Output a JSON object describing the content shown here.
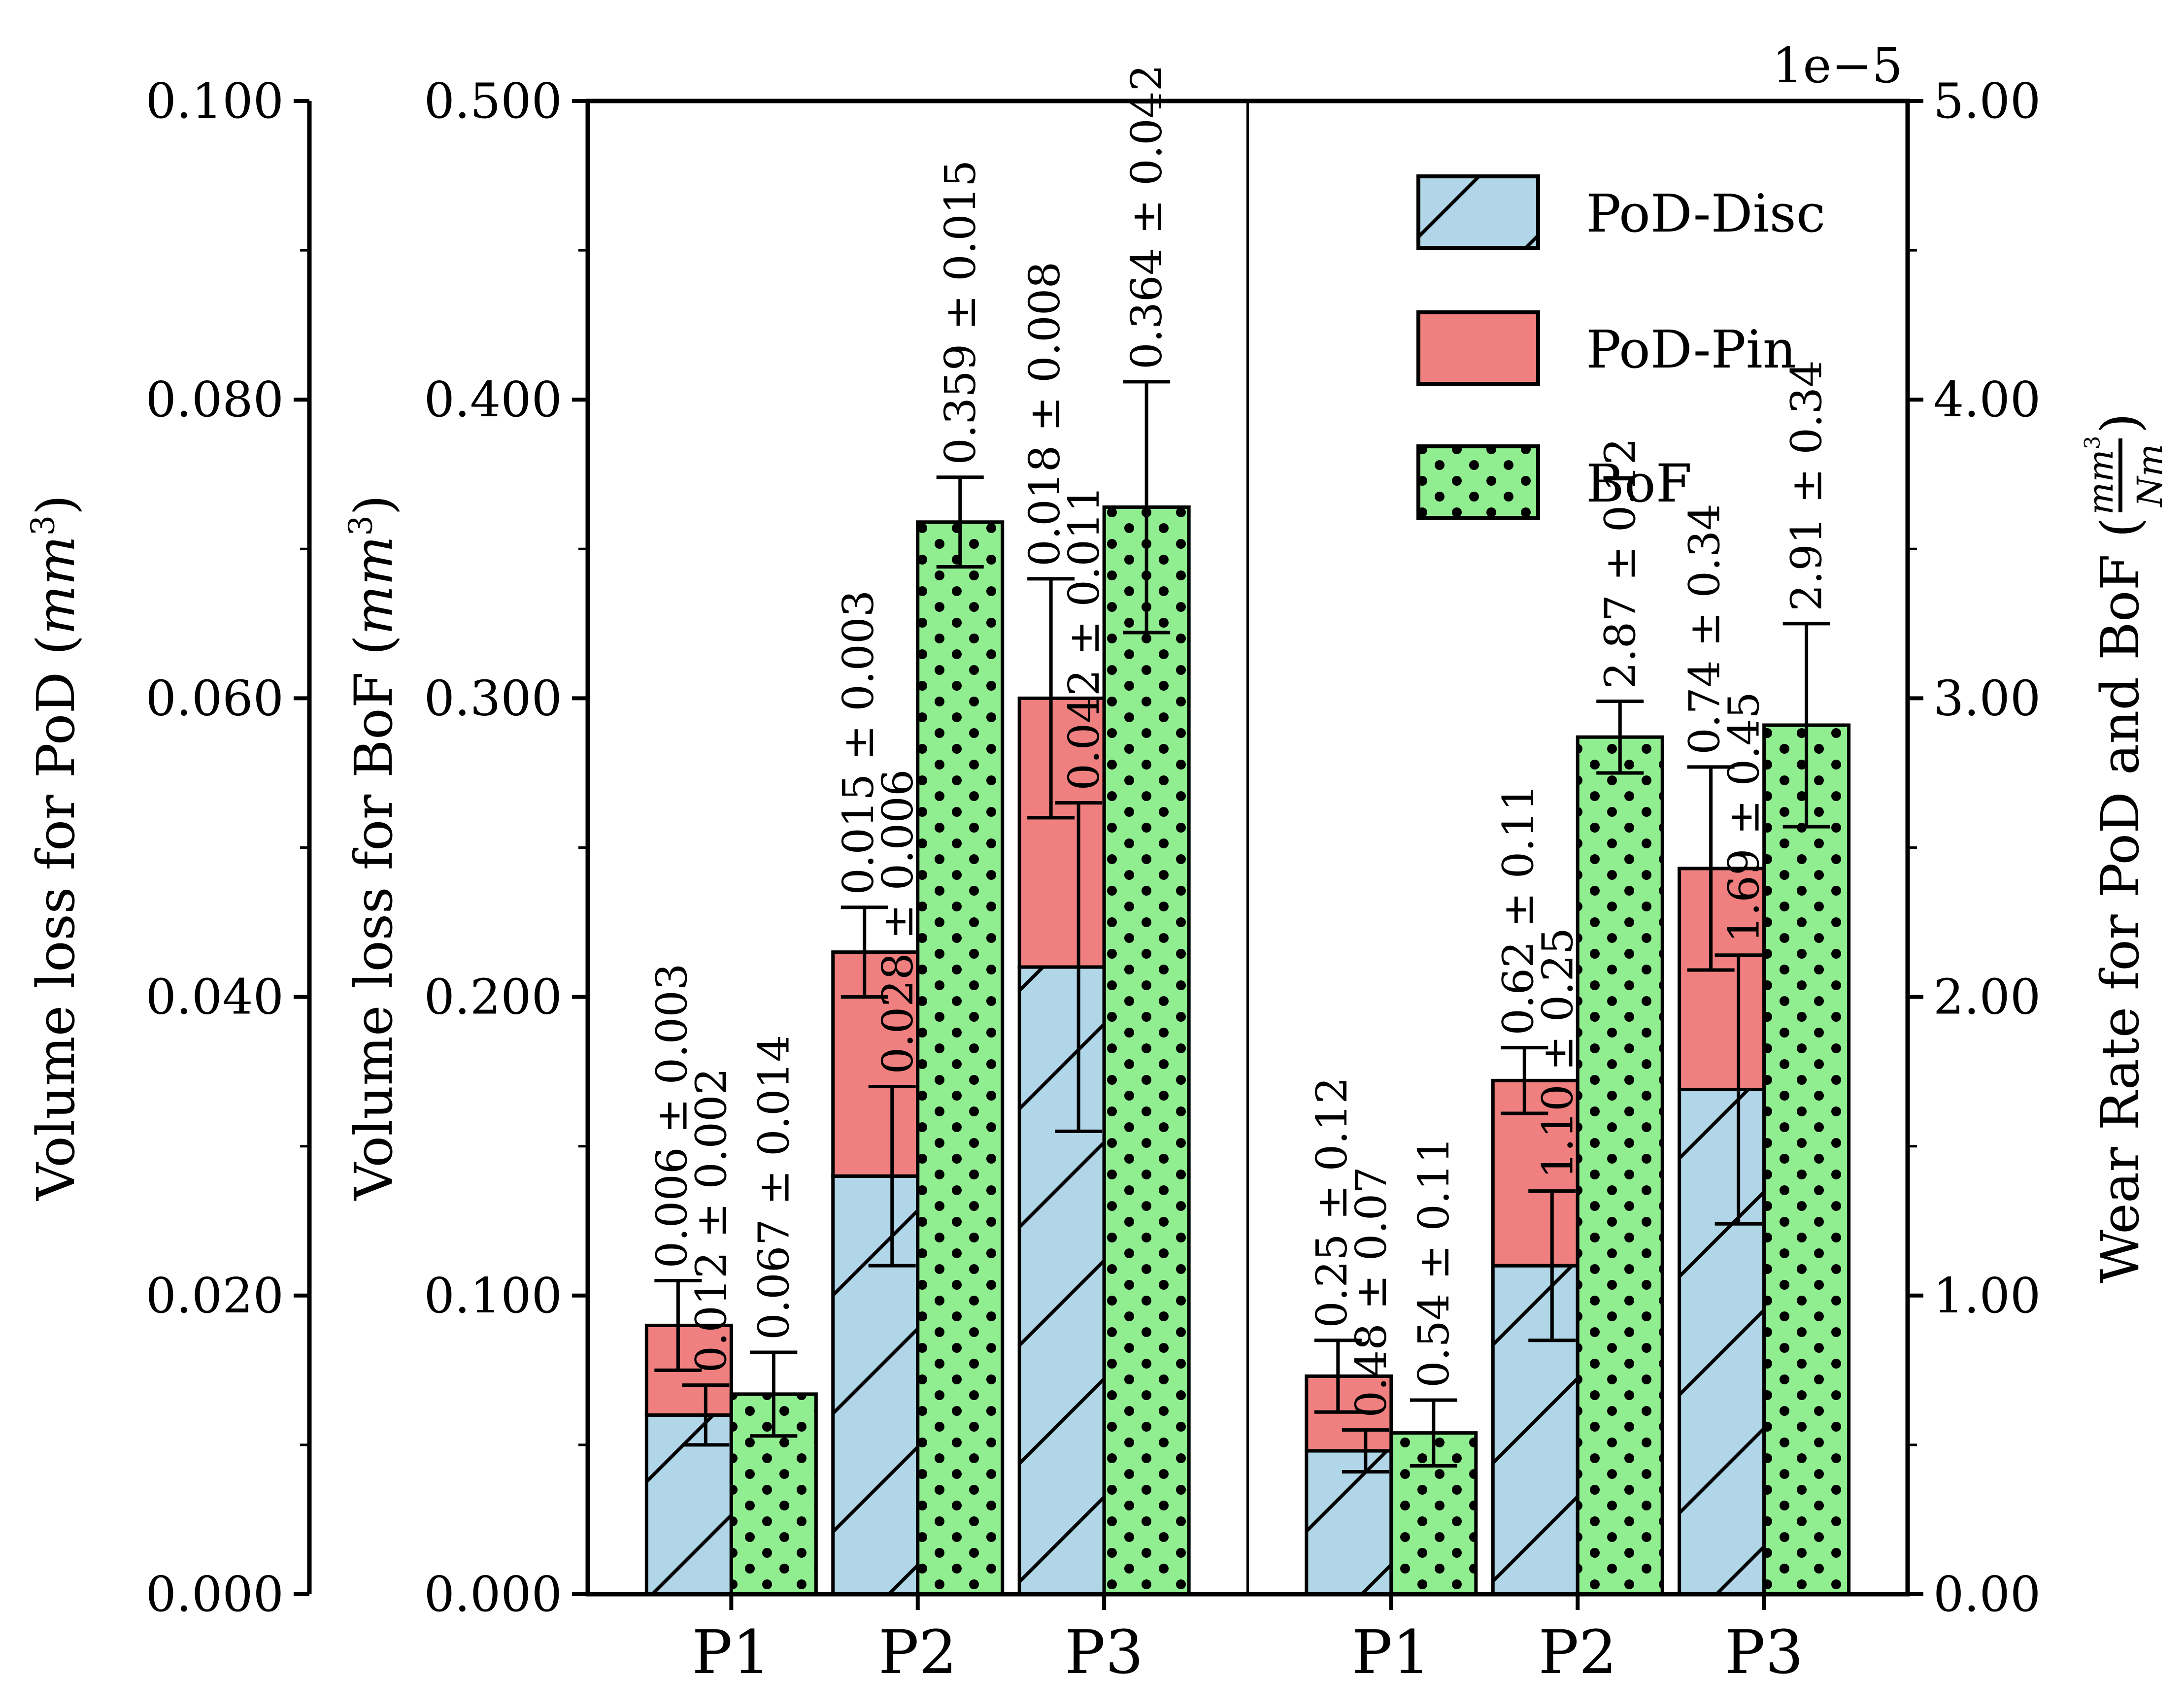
{
  "chart_data": {
    "type": "bar",
    "title": "",
    "offset_label": "1e−5",
    "background": "#ffffff",
    "colors": {
      "pod_disc": "#b0d6e8",
      "pod_pin": "#f08080",
      "bof": "#90ee90",
      "edge": "#000000"
    },
    "legend": {
      "position": "upper-center-right inside plot",
      "entries": [
        {
          "label": "PoD-Disc",
          "fill": "pod_disc",
          "hatch": "diagonal"
        },
        {
          "label": "PoD-Pin",
          "fill": "pod_pin",
          "hatch": "none"
        },
        {
          "label": "BoF",
          "fill": "bof",
          "hatch": "dots"
        }
      ]
    },
    "axes": {
      "pod": {
        "label": "Volume loss for PoD (mm³)",
        "label_parts": [
          {
            "t": "Volume loss for PoD ("
          },
          {
            "t": "mm",
            "italic": true
          },
          {
            "t": "3",
            "sup": true
          },
          {
            "t": ")"
          }
        ],
        "range": [
          0,
          0.1
        ],
        "tick_values": [
          0,
          0.02,
          0.04,
          0.06,
          0.08,
          0.1
        ],
        "tick_labels": [
          "0.000",
          "0.020",
          "0.040",
          "0.060",
          "0.080",
          "0.100"
        ]
      },
      "bof": {
        "label": "Volume loss for BoF (mm³)",
        "label_parts": [
          {
            "t": "Volume loss for BoF ("
          },
          {
            "t": "mm",
            "italic": true
          },
          {
            "t": "3",
            "sup": true
          },
          {
            "t": ")"
          }
        ],
        "range": [
          0,
          0.5
        ],
        "tick_values": [
          0,
          0.1,
          0.2,
          0.3,
          0.4,
          0.5
        ],
        "tick_labels": [
          "0.000",
          "0.100",
          "0.200",
          "0.300",
          "0.400",
          "0.500"
        ]
      },
      "wear": {
        "label": "Wear Rate for PoD and BoF (mm³/Nm)",
        "label_prefix": "Wear Rate for PoD and BoF (",
        "frac_num_parts": [
          {
            "t": "mm",
            "italic": true
          },
          {
            "t": "3",
            "sup": true
          }
        ],
        "frac_den_parts": [
          {
            "t": "Nm",
            "italic": true
          }
        ],
        "label_suffix": ")",
        "range": [
          0,
          5
        ],
        "tick_values": [
          0,
          1,
          2,
          3,
          4,
          5
        ],
        "tick_labels": [
          "0.00",
          "1.00",
          "2.00",
          "3.00",
          "4.00",
          "5.00"
        ]
      }
    },
    "panels": [
      {
        "id": "volume-loss",
        "categories": [
          "P1",
          "P2",
          "P3"
        ],
        "series": [
          {
            "name": "PoD-Disc",
            "role": "disc",
            "axis": "pod",
            "values": [
              0.012,
              0.028,
              0.042
            ],
            "errors": [
              0.002,
              0.006,
              0.011
            ],
            "labels": [
              "0.012 ± 0.002",
              "0.028 ± 0.006",
              "0.042 ± 0.011"
            ]
          },
          {
            "name": "PoD-Pin",
            "role": "pin",
            "axis": "pod",
            "stacked_on": "PoD-Disc",
            "values": [
              0.006,
              0.015,
              0.018
            ],
            "errors": [
              0.003,
              0.003,
              0.008
            ],
            "labels": [
              "0.006 ± 0.003",
              "0.015 ± 0.003",
              "0.018 ± 0.008"
            ]
          },
          {
            "name": "BoF",
            "role": "bof",
            "axis": "bof",
            "values": [
              0.067,
              0.359,
              0.364
            ],
            "errors": [
              0.014,
              0.015,
              0.042
            ],
            "labels": [
              "0.067 ± 0.014",
              "0.359 ± 0.015",
              "0.364 ± 0.042"
            ]
          }
        ]
      },
      {
        "id": "wear-rate",
        "categories": [
          "P1",
          "P2",
          "P3"
        ],
        "series": [
          {
            "name": "PoD-Disc",
            "role": "disc",
            "axis": "wear",
            "values": [
              0.48,
              1.1,
              1.69
            ],
            "errors": [
              0.07,
              0.25,
              0.45
            ],
            "labels": [
              "0.48 ± 0.07",
              "1.10 ± 0.25",
              "1.69 ± 0.45"
            ]
          },
          {
            "name": "PoD-Pin",
            "role": "pin",
            "axis": "wear",
            "stacked_on": "PoD-Disc",
            "values": [
              0.25,
              0.62,
              0.74
            ],
            "errors": [
              0.12,
              0.11,
              0.34
            ],
            "labels": [
              "0.25 ± 0.12",
              "0.62 ± 0.11",
              "0.74 ± 0.34"
            ]
          },
          {
            "name": "BoF",
            "role": "bof",
            "axis": "wear",
            "values": [
              0.54,
              2.87,
              2.91
            ],
            "errors": [
              0.11,
              0.12,
              0.34
            ],
            "labels": [
              "0.54 ± 0.11",
              "2.87 ± 0.12",
              "2.91 ± 0.34"
            ]
          }
        ]
      }
    ]
  }
}
